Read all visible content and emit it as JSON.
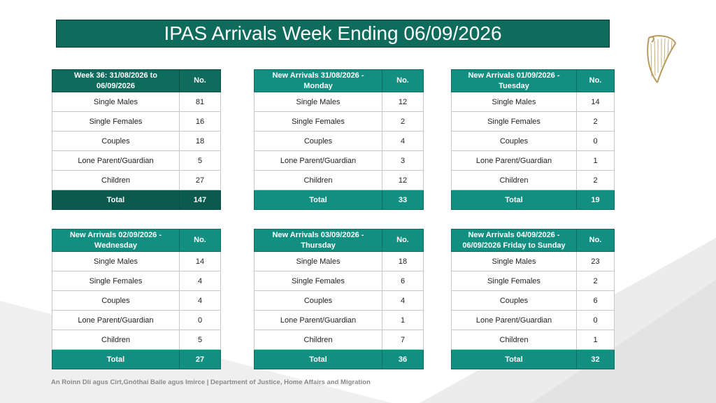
{
  "title": "IPAS Arrivals Week Ending 06/09/2026",
  "footer": "An Roinn Dlí agus Cirt,Gnóthaí Baile agus Imirce | Department of Justice, Home Affairs and Migration",
  "colors": {
    "header_teal": "#119081",
    "dark_green": "#0f6b5c",
    "total_dark": "#0b5a4e"
  },
  "logo": {
    "icon": "harp-icon"
  },
  "tables": [
    {
      "header": "Week 36: 31/08/2026 to 06/09/2026",
      "no_label": "No.",
      "rows": [
        {
          "label": "Single Males",
          "value": "81"
        },
        {
          "label": "Single Females",
          "value": "16"
        },
        {
          "label": "Couples",
          "value": "18"
        },
        {
          "label": "Lone Parent/Guardian",
          "value": "5"
        },
        {
          "label": "Children",
          "value": "27"
        }
      ],
      "total_label": "Total",
      "total_value": "147"
    },
    {
      "header": "New Arrivals 31/08/2026  - Monday",
      "no_label": "No.",
      "rows": [
        {
          "label": "Single Males",
          "value": "12"
        },
        {
          "label": "Single Females",
          "value": "2"
        },
        {
          "label": "Couples",
          "value": "4"
        },
        {
          "label": "Lone Parent/Guardian",
          "value": "3"
        },
        {
          "label": "Children",
          "value": "12"
        }
      ],
      "total_label": "Total",
      "total_value": "33"
    },
    {
      "header": "New Arrivals 01/09/2026  - Tuesday",
      "no_label": "No.",
      "rows": [
        {
          "label": "Single Males",
          "value": "14"
        },
        {
          "label": "Single Females",
          "value": "2"
        },
        {
          "label": "Couples",
          "value": "0"
        },
        {
          "label": "Lone Parent/Guardian",
          "value": "1"
        },
        {
          "label": "Children",
          "value": "2"
        }
      ],
      "total_label": "Total",
      "total_value": "19"
    },
    {
      "header": "New Arrivals 02/09/2026  - Wednesday",
      "no_label": "No.",
      "rows": [
        {
          "label": "Single Males",
          "value": "14"
        },
        {
          "label": "Single Females",
          "value": "4"
        },
        {
          "label": "Couples",
          "value": "4"
        },
        {
          "label": "Lone Parent/Guardian",
          "value": "0"
        },
        {
          "label": "Children",
          "value": "5"
        }
      ],
      "total_label": "Total",
      "total_value": "27"
    },
    {
      "header": "New Arrivals 03/09/2026  - Thursday",
      "no_label": "No.",
      "rows": [
        {
          "label": "Single Males",
          "value": "18"
        },
        {
          "label": "Single Females",
          "value": "6"
        },
        {
          "label": "Couples",
          "value": "4"
        },
        {
          "label": "Lone Parent/Guardian",
          "value": "1"
        },
        {
          "label": "Children",
          "value": "7"
        }
      ],
      "total_label": "Total",
      "total_value": "36"
    },
    {
      "header": "New Arrivals 04/09/2026  - 06/09/2026 Friday to Sunday",
      "no_label": "No.",
      "rows": [
        {
          "label": "Single Males",
          "value": "23"
        },
        {
          "label": "Single Females",
          "value": "2"
        },
        {
          "label": "Couples",
          "value": "6"
        },
        {
          "label": "Lone Parent/Guardian",
          "value": "0"
        },
        {
          "label": "Children",
          "value": "1"
        }
      ],
      "total_label": "Total",
      "total_value": "32"
    }
  ]
}
